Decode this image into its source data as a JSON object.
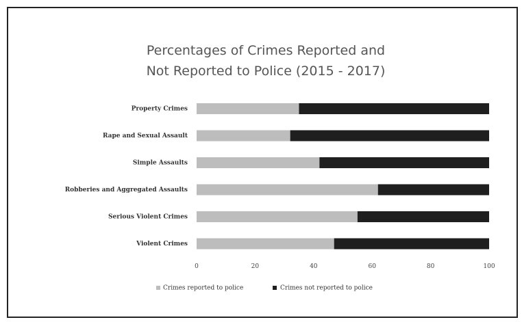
{
  "chart_data": {
    "type": "bar",
    "orientation": "horizontal",
    "stacked": true,
    "title_lines": [
      "Percentages of Crimes Reported and",
      "Not Reported to Police (2015 - 2017)"
    ],
    "categories": [
      "Property Crimes",
      "Rape and Sexual Assault",
      "Simple Assaults",
      "Robberies and Aggregated Assaults",
      "Serious Violent Crimes",
      "Violent Crimes"
    ],
    "series": [
      {
        "name": "Crimes reported to police",
        "color": "#bdbdbd",
        "values": [
          35,
          32,
          42,
          62,
          55,
          47
        ]
      },
      {
        "name": "Crimes not reported to police",
        "color": "#1f1f1f",
        "values": [
          65,
          68,
          58,
          38,
          45,
          53
        ]
      }
    ],
    "xlim": [
      0,
      100
    ],
    "xticks": [
      "0",
      "20",
      "40",
      "60",
      "80",
      "100"
    ],
    "grid": false,
    "legend_position": "bottom"
  }
}
